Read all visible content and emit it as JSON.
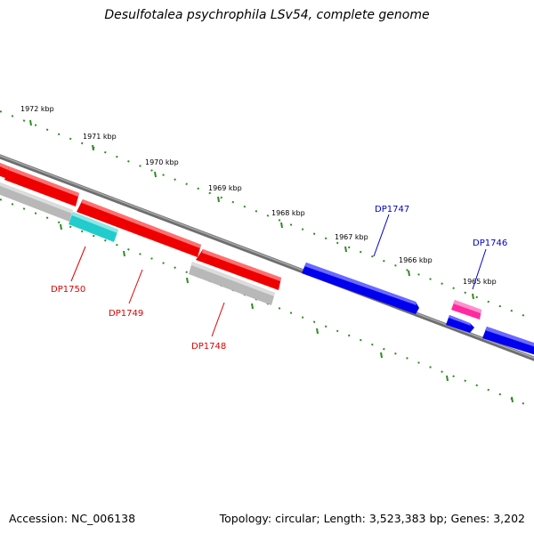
{
  "title": "Desulfotalea psychrophila LSv54, complete genome",
  "footer": {
    "accession": "Accession: NC_006138",
    "summary": "Topology: circular; Length: 3,523,383 bp; Genes: 3,202"
  },
  "colors": {
    "backbone": "#808080",
    "tick": "#2e8b22",
    "forward_gene": "#0000ee",
    "reverse_gene": "#ee0000",
    "rna_gene": "#ff2aa0",
    "cyan_gene": "#22cccc",
    "gray_feature": "#b8b8b8",
    "label_forward": "#0000cc",
    "label_reverse": "#dd0000"
  },
  "scale_labels": [
    "1972 kbp",
    "1971 kbp",
    "1970 kbp",
    "1969 kbp",
    "1968 kbp",
    "1967 kbp",
    "1966 kbp",
    "1965 kbp"
  ],
  "gene_labels": [
    "DP1747",
    "DP1746",
    "DP1750",
    "DP1749",
    "DP1748"
  ]
}
